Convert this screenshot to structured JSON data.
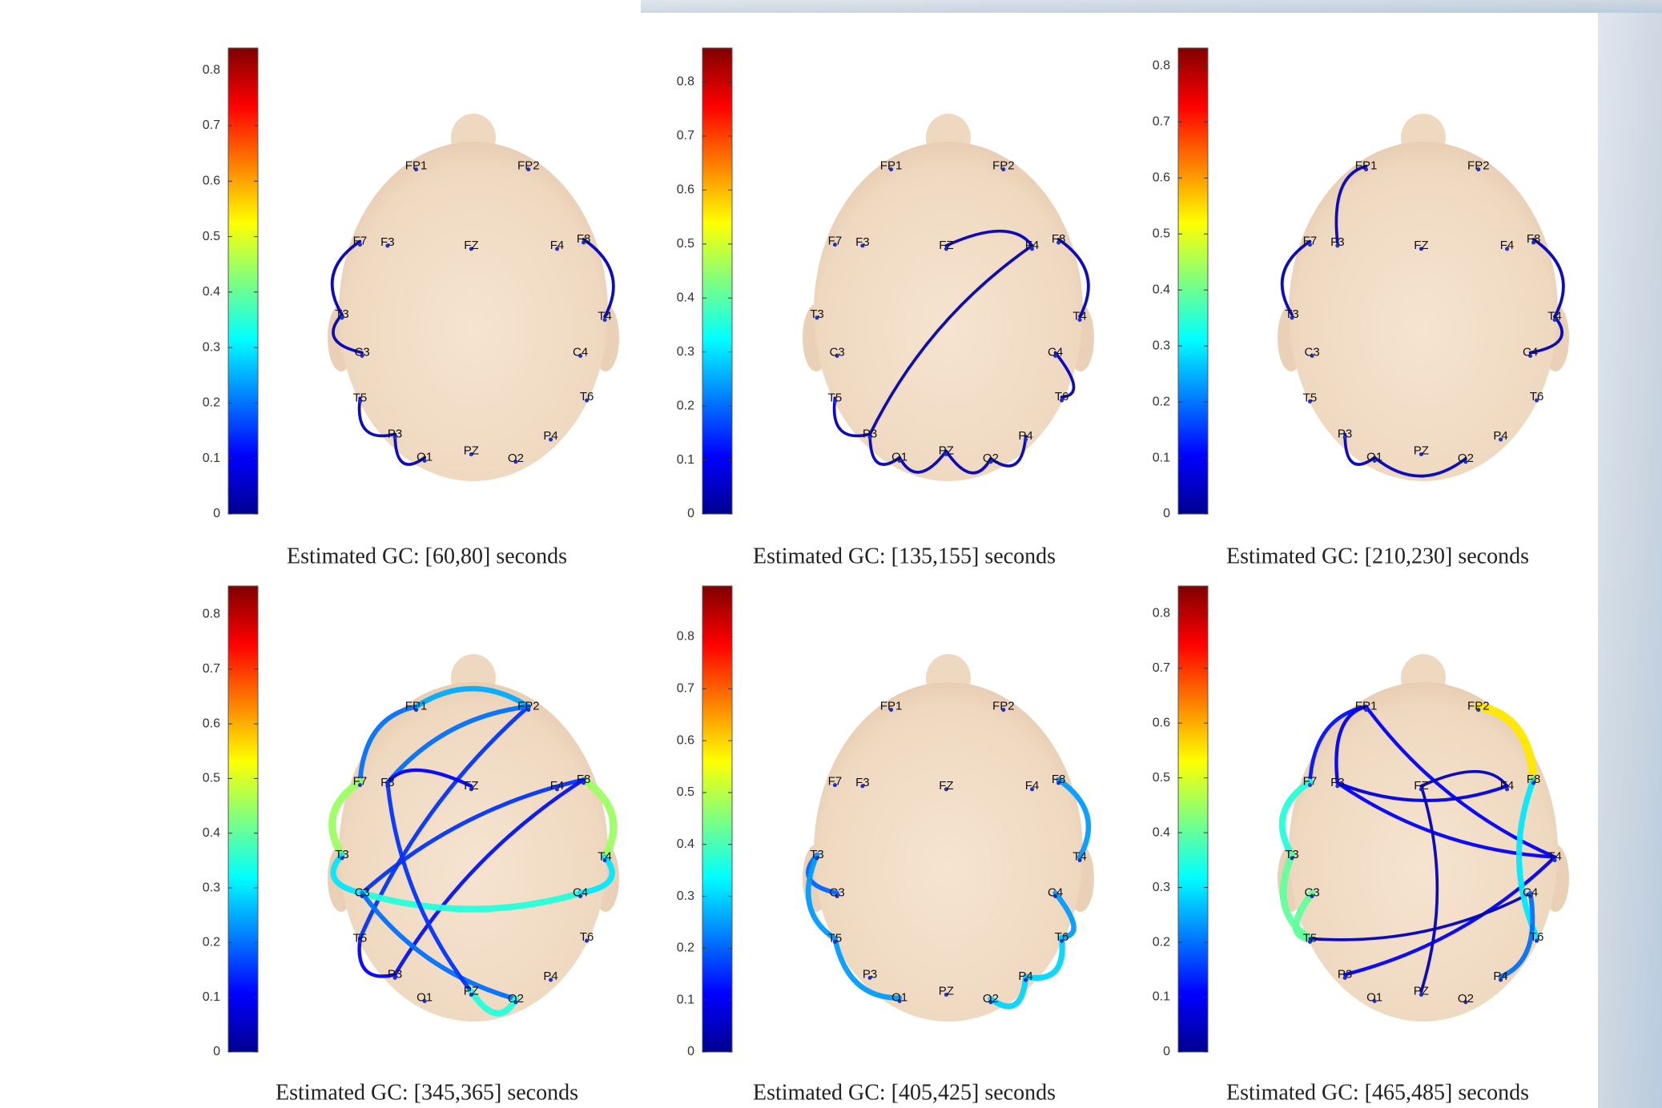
{
  "electrodes": [
    "FP1",
    "FP2",
    "F7",
    "F3",
    "FZ",
    "F4",
    "F8",
    "T3",
    "C3",
    "C4",
    "T4",
    "T5",
    "T6",
    "P3",
    "PZ",
    "P4",
    "O1",
    "O2"
  ],
  "panels": [
    {
      "caption": "Estimated GC: [60,80] seconds",
      "colorbar": {
        "lim": [
          0,
          0.84
        ],
        "ticks": [
          0,
          0.1,
          0.2,
          0.3,
          0.4,
          0.5,
          0.6,
          0.7,
          0.8
        ]
      },
      "edges": [
        {
          "from": "F7",
          "to": "T3",
          "value": 0.05
        },
        {
          "from": "T3",
          "to": "C3",
          "value": 0.05
        },
        {
          "from": "F8",
          "to": "T4",
          "value": 0.05
        },
        {
          "from": "T5",
          "to": "P3",
          "value": 0.05
        },
        {
          "from": "P3",
          "to": "O1",
          "value": 0.05
        }
      ]
    },
    {
      "caption": "Estimated GC: [135,155] seconds",
      "colorbar": {
        "lim": [
          0,
          0.863
        ],
        "ticks": [
          0,
          0.1,
          0.2,
          0.3,
          0.4,
          0.5,
          0.6,
          0.7,
          0.8
        ]
      },
      "edges": [
        {
          "from": "FZ",
          "to": "F4",
          "value": 0.05
        },
        {
          "from": "F4",
          "to": "P3",
          "value": 0.05
        },
        {
          "from": "F8",
          "to": "T4",
          "value": 0.05
        },
        {
          "from": "C4",
          "to": "T6",
          "value": 0.05
        },
        {
          "from": "T5",
          "to": "P3",
          "value": 0.05
        },
        {
          "from": "P3",
          "to": "O1",
          "value": 0.05
        },
        {
          "from": "O1",
          "to": "PZ",
          "value": 0.05
        },
        {
          "from": "PZ",
          "to": "O2",
          "value": 0.05
        },
        {
          "from": "O2",
          "to": "P4",
          "value": 0.05
        }
      ]
    },
    {
      "caption": "Estimated GC: [210,230] seconds",
      "colorbar": {
        "lim": [
          0,
          0.832
        ],
        "ticks": [
          0,
          0.1,
          0.2,
          0.3,
          0.4,
          0.5,
          0.6,
          0.7,
          0.8
        ]
      },
      "edges": [
        {
          "from": "FP1",
          "to": "F3",
          "value": 0.05
        },
        {
          "from": "F7",
          "to": "T3",
          "value": 0.05
        },
        {
          "from": "F8",
          "to": "T4",
          "value": 0.05
        },
        {
          "from": "T4",
          "to": "C4",
          "value": 0.05
        },
        {
          "from": "P3",
          "to": "O1",
          "value": 0.05
        },
        {
          "from": "O1",
          "to": "O2",
          "value": 0.05
        }
      ]
    },
    {
      "caption": "Estimated GC: [345,365] seconds",
      "colorbar": {
        "lim": [
          0,
          0.852
        ],
        "ticks": [
          0,
          0.1,
          0.2,
          0.3,
          0.4,
          0.5,
          0.6,
          0.7,
          0.8
        ]
      },
      "edges": [
        {
          "from": "FP1",
          "to": "F7",
          "value": 0.2
        },
        {
          "from": "FP1",
          "to": "FP2",
          "value": 0.25
        },
        {
          "from": "FP2",
          "to": "T5",
          "value": 0.15
        },
        {
          "from": "FP2",
          "to": "F3",
          "value": 0.2
        },
        {
          "from": "F3",
          "to": "FZ",
          "value": 0.1
        },
        {
          "from": "F7",
          "to": "T3",
          "value": 0.45
        },
        {
          "from": "T3",
          "to": "C3",
          "value": 0.3
        },
        {
          "from": "F8",
          "to": "T4",
          "value": 0.45
        },
        {
          "from": "F8",
          "to": "C3",
          "value": 0.15
        },
        {
          "from": "F8",
          "to": "P3",
          "value": 0.12
        },
        {
          "from": "C3",
          "to": "C4",
          "value": 0.35
        },
        {
          "from": "T4",
          "to": "C4",
          "value": 0.3
        },
        {
          "from": "C3",
          "to": "O2",
          "value": 0.2
        },
        {
          "from": "F3",
          "to": "PZ",
          "value": 0.15
        },
        {
          "from": "PZ",
          "to": "O2",
          "value": 0.35
        },
        {
          "from": "T5",
          "to": "P3",
          "value": 0.1
        }
      ]
    },
    {
      "caption": "Estimated GC: [405,425] seconds",
      "colorbar": {
        "lim": [
          0,
          0.898
        ],
        "ticks": [
          0,
          0.1,
          0.2,
          0.3,
          0.4,
          0.5,
          0.6,
          0.7,
          0.8
        ]
      },
      "edges": [
        {
          "from": "T3",
          "to": "C3",
          "value": 0.2
        },
        {
          "from": "T3",
          "to": "T5",
          "value": 0.25
        },
        {
          "from": "T5",
          "to": "O1",
          "value": 0.25
        },
        {
          "from": "O2",
          "to": "P4",
          "value": 0.3
        },
        {
          "from": "F8",
          "to": "T4",
          "value": 0.25
        },
        {
          "from": "C4",
          "to": "T6",
          "value": 0.25
        },
        {
          "from": "T6",
          "to": "P4",
          "value": 0.3
        }
      ]
    },
    {
      "caption": "Estimated GC: [465,485] seconds",
      "colorbar": {
        "lim": [
          0,
          0.85
        ],
        "ticks": [
          0,
          0.1,
          0.2,
          0.3,
          0.4,
          0.5,
          0.6,
          0.7,
          0.8
        ]
      },
      "edges": [
        {
          "from": "FP2",
          "to": "F8",
          "value": 0.55
        },
        {
          "from": "FP1",
          "to": "F7",
          "value": 0.12
        },
        {
          "from": "FP1",
          "to": "F3",
          "value": 0.1
        },
        {
          "from": "FP1",
          "to": "T4",
          "value": 0.1
        },
        {
          "from": "F3",
          "to": "F4",
          "value": 0.08
        },
        {
          "from": "F3",
          "to": "T4",
          "value": 0.1
        },
        {
          "from": "FZ",
          "to": "F4",
          "value": 0.05
        },
        {
          "from": "F7",
          "to": "T3",
          "value": 0.35
        },
        {
          "from": "T3",
          "to": "T5",
          "value": 0.4
        },
        {
          "from": "T5",
          "to": "C3",
          "value": 0.4
        },
        {
          "from": "PZ",
          "to": "FZ",
          "value": 0.05
        },
        {
          "from": "P3",
          "to": "T4",
          "value": 0.1
        },
        {
          "from": "T5",
          "to": "C4",
          "value": 0.05
        },
        {
          "from": "F8",
          "to": "T6",
          "value": 0.3
        },
        {
          "from": "C4",
          "to": "P4",
          "value": 0.2
        }
      ]
    }
  ]
}
